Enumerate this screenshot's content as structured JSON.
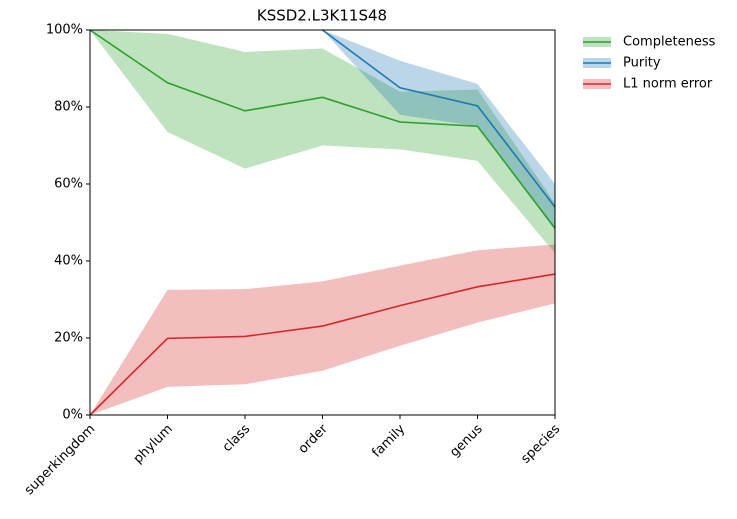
{
  "chart_data": {
    "type": "line",
    "title": "KSSD2.L3K11S48",
    "categories": [
      "superkingdom",
      "phylum",
      "class",
      "order",
      "family",
      "genus",
      "species"
    ],
    "series": [
      {
        "name": "Completeness",
        "color": "#2ca02c",
        "values": [
          100,
          86.3,
          79,
          82.5,
          76.1,
          75,
          48.5
        ],
        "lower": [
          100,
          73.5,
          64,
          70,
          69,
          66,
          42
        ],
        "upper": [
          100,
          99,
          94.3,
          95.2,
          84,
          84.5,
          55
        ]
      },
      {
        "name": "Purity",
        "color": "#1f77b4",
        "values": [
          null,
          null,
          null,
          100,
          85,
          80.3,
          54
        ],
        "lower": [
          null,
          null,
          null,
          100,
          78,
          75,
          48
        ],
        "upper": [
          null,
          null,
          null,
          100,
          92,
          86,
          60
        ]
      },
      {
        "name": "L1 norm error",
        "color": "#d62728",
        "values": [
          0,
          19.9,
          20.4,
          23.1,
          28.4,
          33.3,
          36.6
        ],
        "lower": [
          0,
          7.3,
          8,
          11.5,
          18,
          24,
          29
        ],
        "upper": [
          0,
          32.5,
          32.7,
          34.7,
          38.8,
          42.8,
          44.3
        ]
      }
    ],
    "ylim": [
      0,
      100
    ],
    "yticks": [
      {
        "value": 0,
        "label": "0%"
      },
      {
        "value": 20,
        "label": "20%"
      },
      {
        "value": 40,
        "label": "40%"
      },
      {
        "value": 60,
        "label": "60%"
      },
      {
        "value": 80,
        "label": "80%"
      },
      {
        "value": 100,
        "label": "100%"
      }
    ],
    "legend": "outside-upper-right"
  }
}
